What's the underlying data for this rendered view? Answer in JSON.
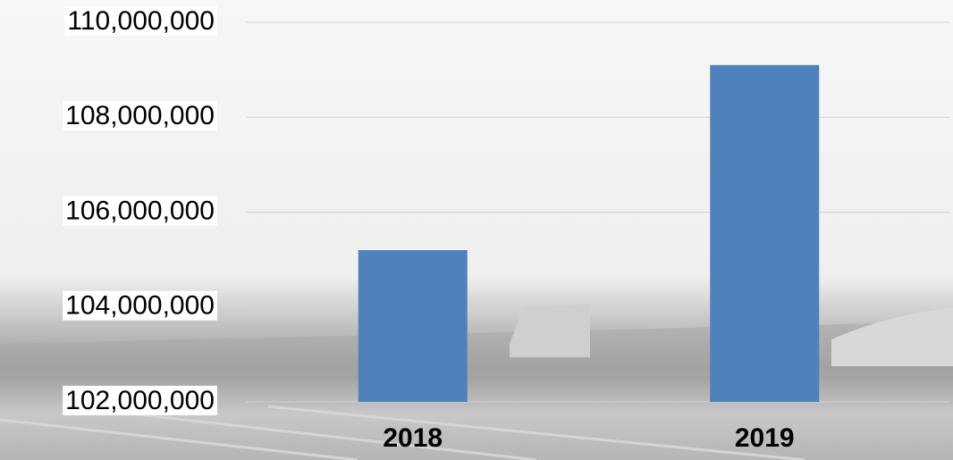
{
  "chart_data": {
    "type": "bar",
    "categories": [
      "2018",
      "2019"
    ],
    "values": [
      105200000,
      109100000
    ],
    "color": "#4f81bd",
    "ylim": [
      102000000,
      110000000
    ],
    "yticks": [
      {
        "value": 102000000,
        "label": "102,000,000"
      },
      {
        "value": 104000000,
        "label": "104,000,000"
      },
      {
        "value": 106000000,
        "label": "106,000,000"
      },
      {
        "value": 108000000,
        "label": "108,000,000"
      },
      {
        "value": 110000000,
        "label": "110,000,000"
      }
    ],
    "grid": true
  }
}
